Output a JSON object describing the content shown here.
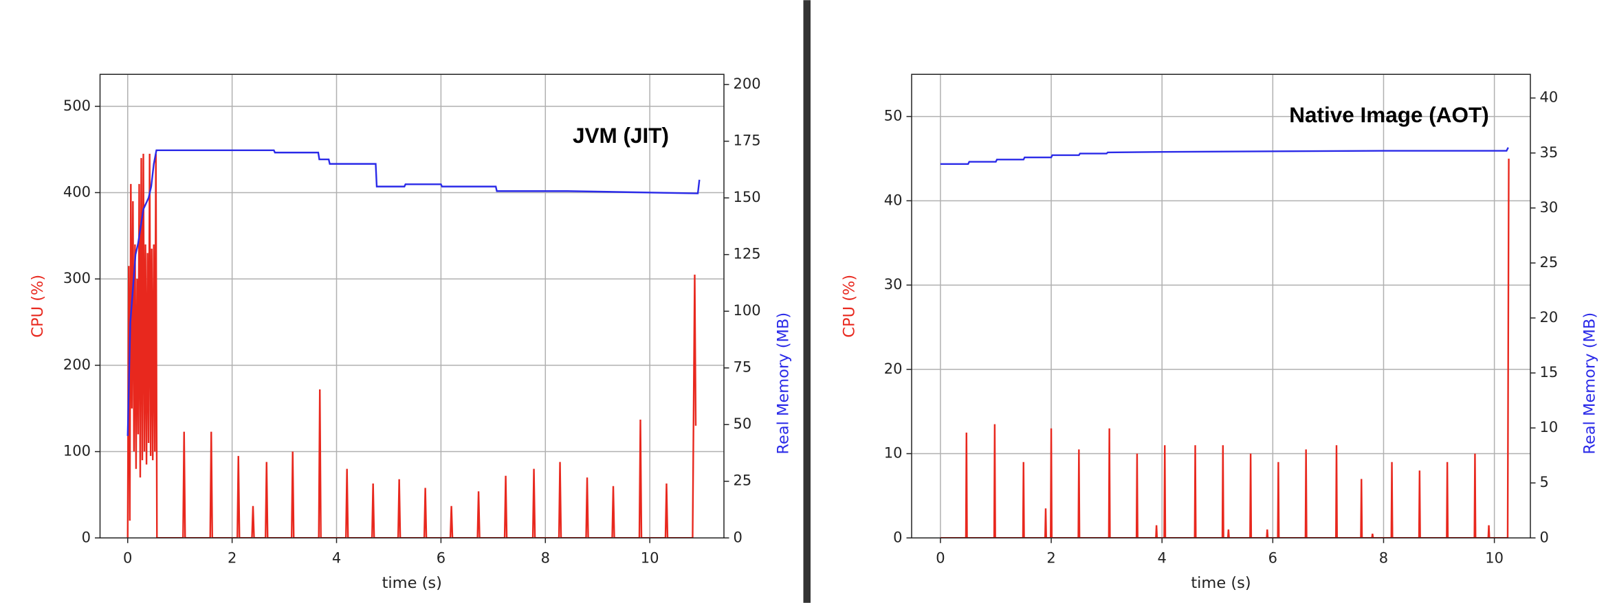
{
  "chart_data": [
    {
      "type": "line",
      "annotation": "JVM (JIT)",
      "xlabel": "time (s)",
      "ylabel": "CPU (%)",
      "y2label": "Real Memory (MB)",
      "xlim": [
        -0.53,
        11.42
      ],
      "xticks": [
        0,
        2,
        4,
        6,
        8,
        10
      ],
      "ylim": [
        0,
        537
      ],
      "yticks": [
        0,
        100,
        200,
        300,
        400,
        500
      ],
      "y2lim": [
        0,
        204.5
      ],
      "y2ticks": [
        0,
        25,
        50,
        75,
        100,
        125,
        150,
        175,
        200
      ],
      "grid": true,
      "series": [
        {
          "name": "CPU (%)",
          "color": "#e8281e",
          "x": [
            0,
            0.02,
            0.04,
            0.06,
            0.08,
            0.1,
            0.12,
            0.14,
            0.16,
            0.18,
            0.2,
            0.22,
            0.24,
            0.26,
            0.28,
            0.3,
            0.32,
            0.34,
            0.36,
            0.38,
            0.4,
            0.42,
            0.44,
            0.46,
            0.48,
            0.5,
            0.52,
            0.54,
            0.56,
            1.06,
            1.08,
            1.1,
            1.58,
            1.6,
            1.62,
            2.1,
            2.12,
            2.14,
            2.38,
            2.4,
            2.42,
            2.64,
            2.66,
            2.68,
            3.14,
            3.16,
            3.18,
            3.66,
            3.68,
            3.7,
            4.18,
            4.2,
            4.22,
            4.68,
            4.7,
            4.72,
            5.18,
            5.2,
            5.22,
            5.68,
            5.7,
            5.72,
            6.18,
            6.2,
            6.22,
            6.7,
            6.72,
            6.74,
            7.22,
            7.24,
            7.26,
            7.76,
            7.78,
            7.8,
            8.26,
            8.28,
            8.3,
            8.78,
            8.8,
            8.82,
            9.28,
            9.3,
            9.32,
            9.8,
            9.82,
            9.84,
            10.3,
            10.32,
            10.34,
            10.82,
            10.86,
            10.88
          ],
          "values": [
            0,
            315,
            20,
            410,
            150,
            390,
            100,
            340,
            80,
            300,
            120,
            410,
            70,
            440,
            90,
            445,
            100,
            340,
            85,
            330,
            110,
            445,
            95,
            335,
            90,
            340,
            100,
            445,
            0,
            0,
            123,
            0,
            0,
            123,
            0,
            0,
            95,
            0,
            0,
            37,
            0,
            0,
            88,
            0,
            0,
            100,
            0,
            0,
            172,
            0,
            0,
            80,
            0,
            0,
            63,
            0,
            0,
            68,
            0,
            0,
            58,
            0,
            0,
            37,
            0,
            0,
            54,
            0,
            0,
            72,
            0,
            0,
            80,
            0,
            0,
            88,
            0,
            0,
            70,
            0,
            0,
            60,
            0,
            0,
            137,
            0,
            0,
            63,
            0,
            0,
            305,
            130
          ]
        },
        {
          "name": "Real Memory (MB)",
          "color": "#2a2ae8",
          "axis": "y2",
          "x": [
            0,
            0.05,
            0.1,
            0.15,
            0.2,
            0.3,
            0.4,
            0.45,
            0.5,
            0.55,
            2.8,
            2.82,
            3.65,
            3.67,
            3.85,
            3.87,
            4.75,
            4.77,
            5.3,
            5.32,
            6.0,
            6.02,
            7.05,
            7.07,
            8.4,
            8.42,
            10.9,
            10.92,
            10.95
          ],
          "values": [
            45,
            95,
            110,
            125,
            130,
            145,
            150,
            155,
            165,
            171,
            171,
            170,
            170,
            167,
            167,
            165,
            165,
            155,
            155,
            156,
            156,
            155,
            155,
            153,
            153,
            153,
            152,
            152,
            158
          ]
        }
      ]
    },
    {
      "type": "line",
      "annotation": "Native Image (AOT)",
      "xlabel": "time (s)",
      "ylabel": "CPU (%)",
      "y2label": "Real Memory (MB)",
      "xlim": [
        -0.52,
        10.65
      ],
      "xticks": [
        0,
        2,
        4,
        6,
        8,
        10
      ],
      "ylim": [
        0,
        55
      ],
      "yticks": [
        0,
        10,
        20,
        30,
        40,
        50
      ],
      "y2lim": [
        0,
        42.15
      ],
      "y2ticks": [
        0,
        5,
        10,
        15,
        20,
        25,
        30,
        35,
        40
      ],
      "grid": true,
      "series": [
        {
          "name": "CPU (%)",
          "color": "#e8281e",
          "x": [
            0,
            0.46,
            0.47,
            0.48,
            0.97,
            0.98,
            0.99,
            1.49,
            1.5,
            1.51,
            1.89,
            1.9,
            1.91,
            1.99,
            2.0,
            2.01,
            2.49,
            2.5,
            2.51,
            3.04,
            3.05,
            3.06,
            3.54,
            3.55,
            3.56,
            3.89,
            3.9,
            3.91,
            4.04,
            4.05,
            4.06,
            4.59,
            4.6,
            4.61,
            5.09,
            5.1,
            5.11,
            5.19,
            5.2,
            5.21,
            5.59,
            5.6,
            5.61,
            5.89,
            5.9,
            5.91,
            6.09,
            6.1,
            6.11,
            6.59,
            6.6,
            6.61,
            7.14,
            7.15,
            7.16,
            7.59,
            7.6,
            7.61,
            7.79,
            7.8,
            7.81,
            8.14,
            8.15,
            8.16,
            8.64,
            8.65,
            8.66,
            9.14,
            9.15,
            9.16,
            9.64,
            9.65,
            9.66,
            9.89,
            9.9,
            9.91,
            10.24,
            10.26
          ],
          "values": [
            0,
            0,
            12.5,
            0,
            0,
            13.5,
            0,
            0,
            9,
            0,
            0,
            3.5,
            0,
            0,
            13,
            0,
            0,
            10.5,
            0,
            0,
            13,
            0,
            0,
            10,
            0,
            0,
            1.5,
            0,
            0,
            11,
            0,
            0,
            11,
            0,
            0,
            11,
            0,
            0,
            1,
            0,
            0,
            10,
            0,
            0,
            1,
            0,
            0,
            9,
            0,
            0,
            10.5,
            0,
            0,
            11,
            0,
            0,
            7,
            0,
            0,
            0.5,
            0,
            0,
            9,
            0,
            0,
            8,
            0,
            0,
            9,
            0,
            0,
            10,
            0,
            0,
            1.5,
            0,
            0,
            45
          ]
        },
        {
          "name": "Real Memory (MB)",
          "color": "#2a2ae8",
          "axis": "y2",
          "x": [
            0,
            0.5,
            0.52,
            1.0,
            1.02,
            1.5,
            1.52,
            2.0,
            2.02,
            2.5,
            2.52,
            3.0,
            3.02,
            4.0,
            6.0,
            8.0,
            10.2,
            10.22,
            10.25
          ],
          "values": [
            34,
            34,
            34.2,
            34.2,
            34.4,
            34.4,
            34.6,
            34.6,
            34.8,
            34.8,
            34.95,
            34.95,
            35.05,
            35.1,
            35.15,
            35.2,
            35.2,
            35.2,
            35.5
          ]
        }
      ]
    }
  ]
}
